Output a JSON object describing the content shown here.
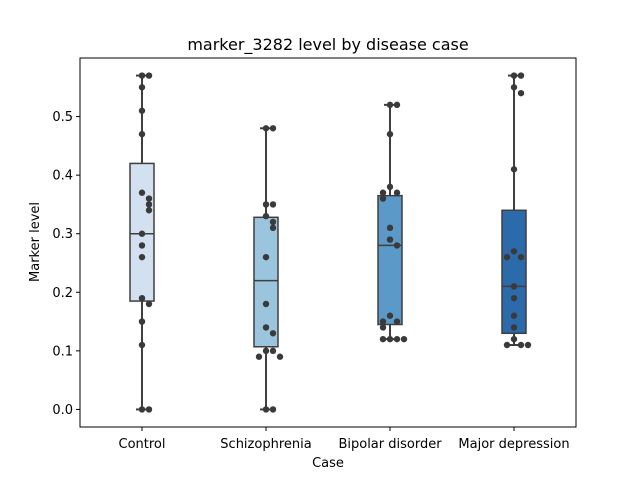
{
  "chart_data": {
    "type": "box",
    "title": "marker_3282 level by disease case",
    "xlabel": "Case",
    "ylabel": "Marker level",
    "ylim": [
      -0.03,
      0.6
    ],
    "yticks": [
      0.0,
      0.1,
      0.2,
      0.3,
      0.4,
      0.5
    ],
    "ytick_labels": [
      "0.0",
      "0.1",
      "0.2",
      "0.3",
      "0.4",
      "0.5"
    ],
    "grid": false,
    "categories": [
      "Control",
      "Schizophrenia",
      "Bipolar disorder",
      "Major depression"
    ],
    "colors": [
      "#d2e0f0",
      "#9bc5de",
      "#5b9ac8",
      "#2c6bab"
    ],
    "boxes": [
      {
        "min": 0.0,
        "q1": 0.185,
        "median": 0.3,
        "q3": 0.42,
        "max": 0.57
      },
      {
        "min": 0.0,
        "q1": 0.107,
        "median": 0.22,
        "q3": 0.328,
        "max": 0.48
      },
      {
        "min": 0.12,
        "q1": 0.145,
        "median": 0.28,
        "q3": 0.365,
        "max": 0.52
      },
      {
        "min": 0.11,
        "q1": 0.13,
        "median": 0.21,
        "q3": 0.34,
        "max": 0.57
      }
    ],
    "points": [
      [
        0.57,
        0.57,
        0.55,
        0.51,
        0.47,
        0.37,
        0.36,
        0.35,
        0.34,
        0.3,
        0.28,
        0.26,
        0.19,
        0.18,
        0.15,
        0.11,
        0.0,
        0.0
      ],
      [
        0.48,
        0.48,
        0.35,
        0.35,
        0.33,
        0.32,
        0.31,
        0.26,
        0.18,
        0.14,
        0.13,
        0.1,
        0.1,
        0.09,
        0.09,
        0.0,
        0.0
      ],
      [
        0.52,
        0.52,
        0.47,
        0.38,
        0.37,
        0.37,
        0.36,
        0.31,
        0.29,
        0.28,
        0.16,
        0.15,
        0.15,
        0.14,
        0.12,
        0.12,
        0.12,
        0.12
      ],
      [
        0.57,
        0.57,
        0.55,
        0.54,
        0.41,
        0.27,
        0.26,
        0.26,
        0.21,
        0.19,
        0.16,
        0.14,
        0.12,
        0.11,
        0.11,
        0.11
      ]
    ]
  }
}
